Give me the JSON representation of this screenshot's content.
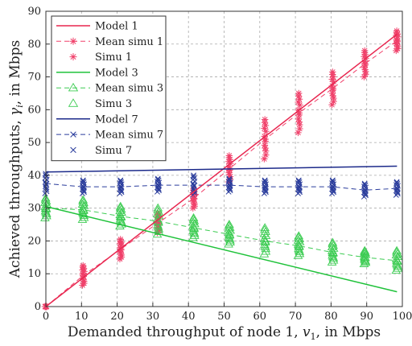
{
  "chart_data": {
    "type": "line",
    "xlabel_prefix": "Demanded throughput of node 1, ",
    "xlabel_var": "v",
    "xlabel_sub": "1",
    "xlabel_suffix": ", in Mbps",
    "ylabel_prefix": "Achieved throughputs, ",
    "ylabel_var": "γ",
    "ylabel_sub": "i",
    "ylabel_suffix": ", in Mbps",
    "xlim": [
      0,
      100
    ],
    "ylim": [
      0,
      90
    ],
    "xticks": [
      0,
      10,
      20,
      30,
      40,
      50,
      60,
      70,
      80,
      90,
      100
    ],
    "yticks": [
      0,
      10,
      20,
      30,
      40,
      50,
      60,
      70,
      80,
      90
    ],
    "grid": true,
    "legend_position": "top-left",
    "x_points": [
      0,
      10.5,
      21,
      31.5,
      41.5,
      51.5,
      61.5,
      71,
      80.5,
      89.5,
      98.5
    ],
    "series": [
      {
        "name": "Model 1",
        "style": "model",
        "color": "#e8264f",
        "x": [
          0,
          98.5
        ],
        "values": [
          0,
          83
        ]
      },
      {
        "name": "Mean simu 1",
        "style": "mean",
        "marker": "asterisk",
        "color": "#f0406a",
        "values": [
          0,
          9.5,
          17.5,
          25.5,
          33,
          42,
          51,
          59,
          66.5,
          74,
          81
        ]
      },
      {
        "name": "Simu 1",
        "style": "scatter",
        "marker": "asterisk",
        "color": "#f0406a",
        "values": [
          0,
          9.5,
          17.5,
          25.5,
          33,
          42,
          51,
          59,
          66.5,
          74,
          81
        ],
        "spread": [
          0,
          3,
          3,
          3,
          3,
          4,
          6,
          6,
          5,
          4,
          3
        ]
      },
      {
        "name": "Model 3",
        "style": "model",
        "color": "#1fc23a",
        "x": [
          0,
          98.5
        ],
        "values": [
          30.5,
          4.5
        ]
      },
      {
        "name": "Mean simu 3",
        "style": "mean",
        "marker": "triangle",
        "color": "#3ccc52",
        "values": [
          30,
          29.5,
          27.5,
          26,
          24,
          22,
          20,
          18.5,
          16.5,
          15,
          14
        ]
      },
      {
        "name": "Simu 3",
        "style": "scatter",
        "marker": "triangle",
        "color": "#3ccc52",
        "values": [
          30,
          29.5,
          27.5,
          26,
          24,
          22,
          20,
          18.5,
          16.5,
          15,
          14
        ],
        "spread": [
          3,
          3,
          3,
          4,
          3,
          3,
          4,
          3,
          3,
          2,
          3
        ]
      },
      {
        "name": "Model 7",
        "style": "model",
        "color": "#1c2a8a",
        "x": [
          0,
          98.5
        ],
        "values": [
          41,
          42.8
        ]
      },
      {
        "name": "Mean simu 7",
        "style": "mean",
        "marker": "cross",
        "color": "#2a3c9c",
        "values": [
          37.5,
          36.5,
          36.5,
          37,
          37,
          37,
          36.5,
          36.5,
          36.5,
          35.5,
          36
        ]
      },
      {
        "name": "Simu 7",
        "style": "scatter",
        "marker": "cross",
        "color": "#2a3c9c",
        "values": [
          37.5,
          36.5,
          36.5,
          37,
          37,
          37,
          36.5,
          36.5,
          36.5,
          35.5,
          36
        ],
        "spread": [
          3,
          2,
          2,
          2,
          3,
          2,
          2,
          2,
          2,
          2,
          2
        ]
      }
    ]
  }
}
